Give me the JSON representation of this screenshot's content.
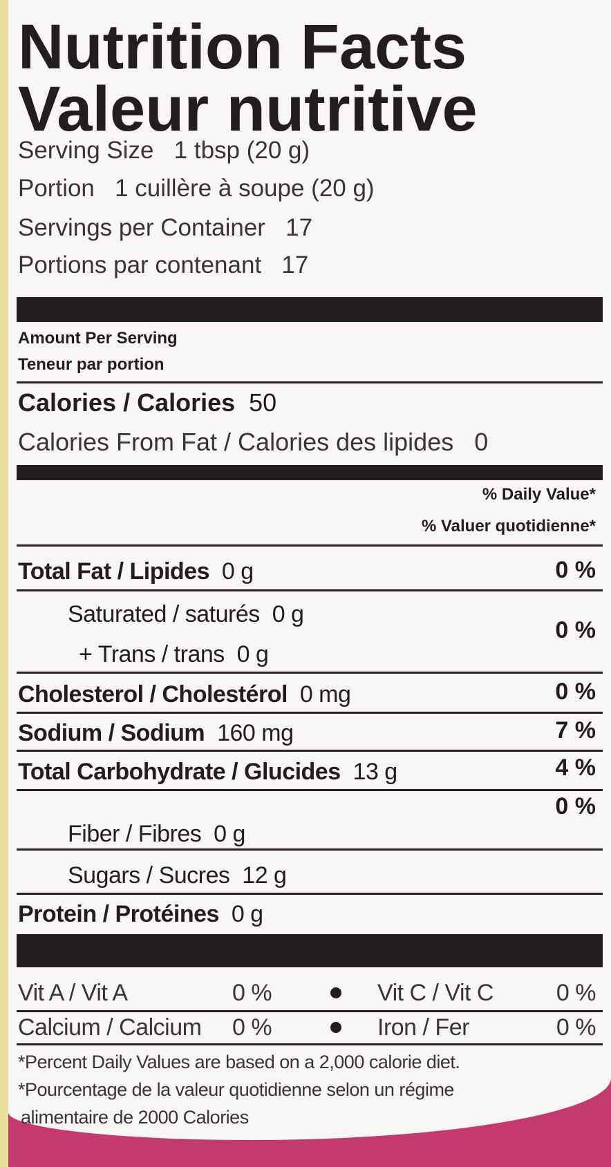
{
  "title_en": "Nutrition Facts",
  "title_fr": "Valeur nutritive",
  "serving": [
    {
      "label": "Serving Size",
      "value": "1 tbsp (20 g)"
    },
    {
      "label": "Portion",
      "value": "1 cuillère à soupe (20 g)"
    },
    {
      "label": "Servings per Container",
      "value": "17"
    },
    {
      "label": "Portions par contenant",
      "value": "17"
    }
  ],
  "amount_en": "Amount Per Serving",
  "amount_fr": "Teneur par portion",
  "calories": {
    "label": "Calories / Calories",
    "value": "50"
  },
  "calories_fat": {
    "label": "Calories From Fat / Calories des lipides",
    "value": "0"
  },
  "dv_en": "% Daily Value*",
  "dv_fr": "% Valuer quotidienne*",
  "nutrients": [
    {
      "label": "Total Fat / Lipides",
      "amount": "0 g",
      "dv": "0 %"
    },
    {
      "label": "Saturated / saturés",
      "amount": "0 g",
      "dv": "0 %"
    },
    {
      "label": "+ Trans / trans",
      "amount": "0 g",
      "dv": ""
    },
    {
      "label": "Cholesterol / Cholestérol",
      "amount": "0 mg",
      "dv": "0 %"
    },
    {
      "label": "Sodium / Sodium",
      "amount": "160 mg",
      "dv": "7 %"
    },
    {
      "label": "Total Carbohydrate / Glucides",
      "amount": "13 g",
      "dv": "4 %"
    },
    {
      "label": "Fiber / Fibres",
      "amount": "0 g",
      "dv": "0 %"
    },
    {
      "label": "Sugars / Sucres",
      "amount": "12 g",
      "dv": ""
    },
    {
      "label": "Protein / Protéines",
      "amount": "0 g",
      "dv": ""
    }
  ],
  "vitamins": [
    {
      "label": "Vit A / Vit A",
      "dv": "0 %"
    },
    {
      "label": "Vit C / Vit C",
      "dv": "0 %"
    },
    {
      "label": "Calcium / Calcium",
      "dv": "0 %"
    },
    {
      "label": "Iron / Fer",
      "dv": "0 %"
    }
  ],
  "footnote_en": "*Percent Daily Values are based on a 2,000 calorie diet.",
  "footnote_fr_1": "*Pourcentage de la valeur quotidienne selon un régime",
  "footnote_fr_2": "alimentaire de 2000 Calories",
  "colors": {
    "ink": "#231d1f",
    "label_bg": "#f7f6f4",
    "package_pink": "#c23a6e"
  }
}
